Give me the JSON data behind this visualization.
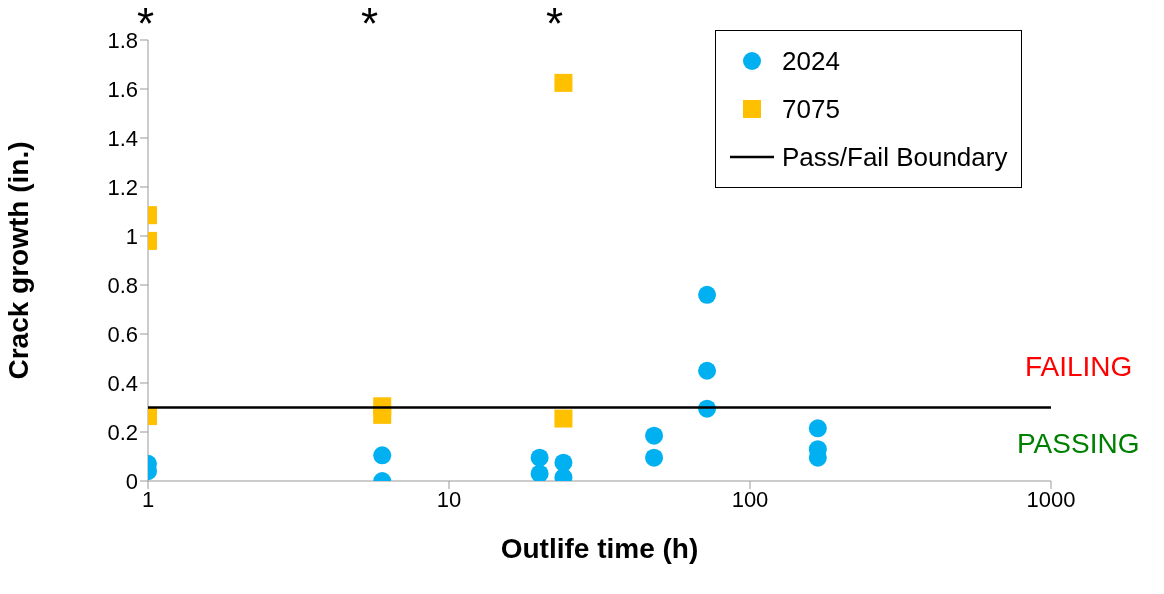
{
  "chart_data": {
    "type": "scatter",
    "xlabel": "Outlife time (h)",
    "ylabel": "Crack growth (in.)",
    "log": "x",
    "xlim": [
      1,
      1000
    ],
    "xticks": [
      1,
      10,
      100,
      1000
    ],
    "ylim": [
      0,
      1.8
    ],
    "yticks": [
      0,
      0.2,
      0.4,
      0.6,
      0.8,
      1,
      1.2,
      1.4,
      1.6,
      1.8
    ],
    "grid": false,
    "legend": "top right",
    "series": [
      {
        "name": "2024",
        "color": "#00b0f0",
        "marker": "circle",
        "x": [
          1,
          1,
          6,
          6,
          20,
          20,
          24,
          24,
          48,
          48,
          72,
          72,
          72,
          168,
          168,
          168
        ],
        "values": [
          0.07,
          0.04,
          0.105,
          0.0,
          0.095,
          0.03,
          0.075,
          0.015,
          0.185,
          0.095,
          0.76,
          0.45,
          0.295,
          0.215,
          0.13,
          0.095
        ]
      },
      {
        "name": "7075",
        "color": "#ffc000",
        "marker": "square",
        "x": [
          1,
          1,
          1,
          6,
          6,
          24,
          24
        ],
        "values": [
          1.085,
          0.98,
          0.265,
          0.305,
          0.27,
          1.625,
          0.255
        ]
      },
      {
        "name": "Pass/Fail Boundary",
        "type": "line",
        "color": "#000000",
        "marker": "none",
        "x": [
          1,
          1000
        ],
        "values": [
          0.3,
          0.3
        ]
      }
    ],
    "annotations": [
      "*",
      "*",
      "*",
      "FAILING",
      "PASSING"
    ]
  }
}
